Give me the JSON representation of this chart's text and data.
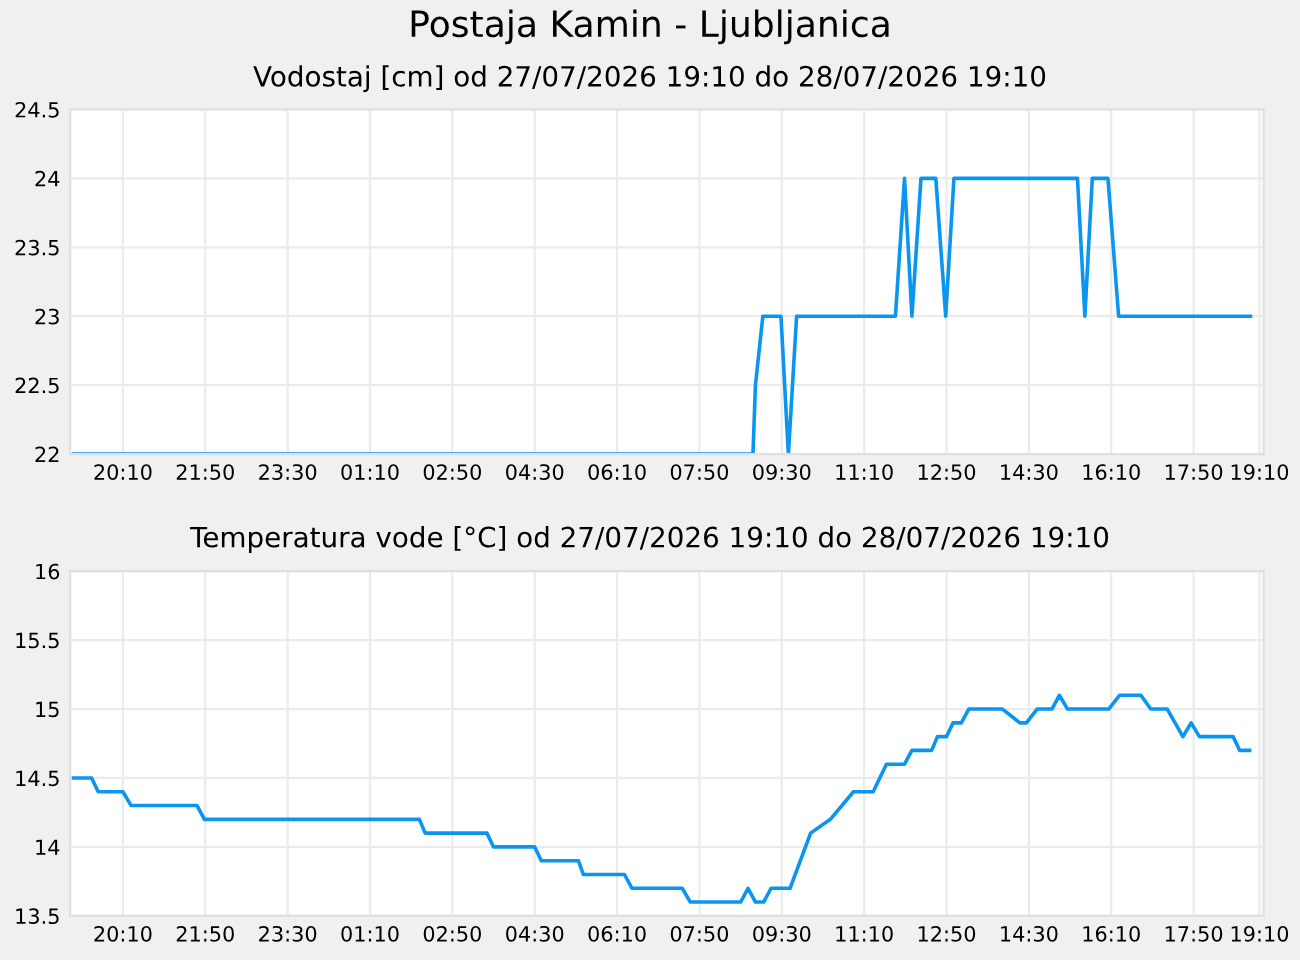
{
  "chart_data": [
    {
      "type": "line",
      "title": "Postaja Kamin - Ljubljanica",
      "subtitle": "Vodostaj [cm] od 27/07/2026 19:10 do 28/07/2026 19:10",
      "series": [
        {
          "color": "#0a96f0",
          "x": [
            "2026-07-27T19:10",
            "2026-07-28T08:55",
            "2026-07-28T08:58",
            "2026-07-28T09:07",
            "2026-07-28T09:29",
            "2026-07-28T09:38",
            "2026-07-28T09:48",
            "2026-07-28T11:48",
            "2026-07-28T11:59",
            "2026-07-28T12:08",
            "2026-07-28T12:19",
            "2026-07-28T12:37",
            "2026-07-28T12:49",
            "2026-07-28T12:59",
            "2026-07-28T15:29",
            "2026-07-28T15:38",
            "2026-07-28T15:47",
            "2026-07-28T16:06",
            "2026-07-28T16:19",
            "2026-07-28T18:59"
          ],
          "values": [
            22,
            22,
            22.5,
            23,
            23,
            22,
            23,
            23,
            24,
            23,
            24,
            24,
            23,
            24,
            24,
            23,
            24,
            24,
            23,
            23
          ]
        }
      ],
      "xlim": [
        "2026-07-27T19:06",
        "2026-07-28T19:15"
      ],
      "xticks": [
        {
          "value": "2026-07-27T20:10",
          "label": "20:10"
        },
        {
          "value": "2026-07-27T21:50",
          "label": "21:50"
        },
        {
          "value": "2026-07-27T23:30",
          "label": "23:30"
        },
        {
          "value": "2026-07-28T01:10",
          "label": "01:10"
        },
        {
          "value": "2026-07-28T02:50",
          "label": "02:50"
        },
        {
          "value": "2026-07-28T04:30",
          "label": "04:30"
        },
        {
          "value": "2026-07-28T06:10",
          "label": "06:10"
        },
        {
          "value": "2026-07-28T07:50",
          "label": "07:50"
        },
        {
          "value": "2026-07-28T09:30",
          "label": "09:30"
        },
        {
          "value": "2026-07-28T11:10",
          "label": "11:10"
        },
        {
          "value": "2026-07-28T12:50",
          "label": "12:50"
        },
        {
          "value": "2026-07-28T14:30",
          "label": "14:30"
        },
        {
          "value": "2026-07-28T16:10",
          "label": "16:10"
        },
        {
          "value": "2026-07-28T17:50",
          "label": "17:50"
        },
        {
          "value": "2026-07-28T19:10",
          "label": "19:10"
        }
      ],
      "ylim": [
        22,
        24.5
      ],
      "yticks": [
        22,
        22.5,
        23,
        23.5,
        24,
        24.5
      ],
      "grid": true
    },
    {
      "type": "line",
      "title": "Temperatura vode [°C] od 27/07/2026 19:10 do 28/07/2026 19:10",
      "series": [
        {
          "color": "#0a96f0",
          "x": [
            "2026-07-27T19:10",
            "2026-07-27T19:32",
            "2026-07-27T19:40",
            "2026-07-27T20:10",
            "2026-07-27T20:20",
            "2026-07-27T21:40",
            "2026-07-27T21:49",
            "2026-07-28T02:10",
            "2026-07-28T02:17",
            "2026-07-28T03:32",
            "2026-07-28T03:40",
            "2026-07-28T04:30",
            "2026-07-28T04:38",
            "2026-07-28T05:23",
            "2026-07-28T05:29",
            "2026-07-28T06:19",
            "2026-07-28T06:28",
            "2026-07-28T07:29",
            "2026-07-28T07:39",
            "2026-07-28T08:40",
            "2026-07-28T08:49",
            "2026-07-28T08:58",
            "2026-07-28T09:08",
            "2026-07-28T09:17",
            "2026-07-28T09:40",
            "2026-07-28T10:05",
            "2026-07-28T10:29",
            "2026-07-28T10:57",
            "2026-07-28T11:21",
            "2026-07-28T11:37",
            "2026-07-28T11:59",
            "2026-07-28T12:08",
            "2026-07-28T12:32",
            "2026-07-28T12:39",
            "2026-07-28T12:50",
            "2026-07-28T12:58",
            "2026-07-28T13:08",
            "2026-07-28T13:17",
            "2026-07-28T13:58",
            "2026-07-28T14:19",
            "2026-07-28T14:27",
            "2026-07-28T14:40",
            "2026-07-28T14:58",
            "2026-07-28T15:07",
            "2026-07-28T15:17",
            "2026-07-28T16:07",
            "2026-07-28T16:20",
            "2026-07-28T16:46",
            "2026-07-28T16:58",
            "2026-07-28T17:18",
            "2026-07-28T17:37",
            "2026-07-28T17:47",
            "2026-07-28T17:57",
            "2026-07-28T18:38",
            "2026-07-28T18:46",
            "2026-07-28T18:58"
          ],
          "values": [
            14.5,
            14.5,
            14.4,
            14.4,
            14.3,
            14.3,
            14.2,
            14.2,
            14.1,
            14.1,
            14.0,
            14.0,
            13.9,
            13.9,
            13.8,
            13.8,
            13.7,
            13.7,
            13.6,
            13.6,
            13.7,
            13.6,
            13.6,
            13.7,
            13.7,
            14.1,
            14.2,
            14.4,
            14.4,
            14.6,
            14.6,
            14.7,
            14.7,
            14.8,
            14.8,
            14.9,
            14.9,
            15.0,
            15.0,
            14.9,
            14.9,
            15.0,
            15.0,
            15.1,
            15.0,
            15.0,
            15.1,
            15.1,
            15.0,
            15.0,
            14.8,
            14.9,
            14.8,
            14.8,
            14.7,
            14.7
          ]
        }
      ],
      "xlim": [
        "2026-07-27T19:06",
        "2026-07-28T19:15"
      ],
      "xticks": [
        {
          "value": "2026-07-27T20:10",
          "label": "20:10"
        },
        {
          "value": "2026-07-27T21:50",
          "label": "21:50"
        },
        {
          "value": "2026-07-27T23:30",
          "label": "23:30"
        },
        {
          "value": "2026-07-28T01:10",
          "label": "01:10"
        },
        {
          "value": "2026-07-28T02:50",
          "label": "02:50"
        },
        {
          "value": "2026-07-28T04:30",
          "label": "04:30"
        },
        {
          "value": "2026-07-28T06:10",
          "label": "06:10"
        },
        {
          "value": "2026-07-28T07:50",
          "label": "07:50"
        },
        {
          "value": "2026-07-28T09:30",
          "label": "09:30"
        },
        {
          "value": "2026-07-28T11:10",
          "label": "11:10"
        },
        {
          "value": "2026-07-28T12:50",
          "label": "12:50"
        },
        {
          "value": "2026-07-28T14:30",
          "label": "14:30"
        },
        {
          "value": "2026-07-28T16:10",
          "label": "16:10"
        },
        {
          "value": "2026-07-28T17:50",
          "label": "17:50"
        },
        {
          "value": "2026-07-28T19:10",
          "label": "19:10"
        }
      ],
      "ylim": [
        13.5,
        16
      ],
      "yticks": [
        13.5,
        14,
        14.5,
        15,
        15.5,
        16
      ],
      "grid": true
    }
  ]
}
